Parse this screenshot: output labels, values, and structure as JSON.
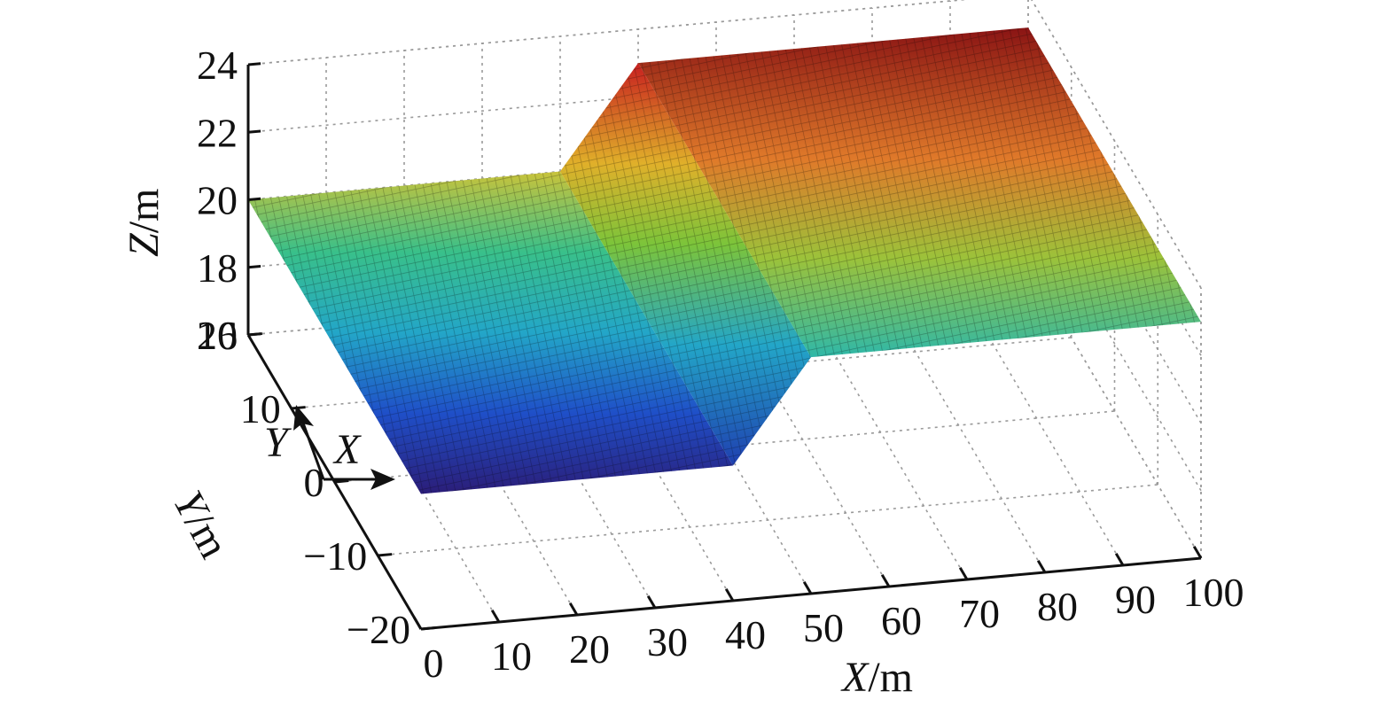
{
  "chart_data": {
    "type": "surface",
    "view": "3d",
    "title": "",
    "xlabel_var": "X",
    "xlabel_unit": "/m",
    "ylabel_var": "Y",
    "ylabel_unit": "/m",
    "zlabel_var": "Z",
    "zlabel_unit": "/m",
    "xlim": [
      0,
      100
    ],
    "ylim": [
      -20,
      20
    ],
    "zlim": [
      16,
      24
    ],
    "x_ticks": [
      "0",
      "10",
      "20",
      "30",
      "40",
      "50",
      "60",
      "70",
      "80",
      "90",
      "100"
    ],
    "y_ticks": [
      "−20",
      "−10",
      "0",
      "10",
      "20"
    ],
    "z_ticks": [
      "16",
      "18",
      "20",
      "22",
      "24"
    ],
    "grid": true,
    "colormap": [
      "#2b1d78",
      "#1f4fc8",
      "#23a6c8",
      "#39c08a",
      "#c9c33a",
      "#e07a2a",
      "#b81f1f",
      "#6a1010"
    ],
    "surface": {
      "description_x": [
        0,
        40,
        50,
        100
      ],
      "description_z": [
        20,
        20,
        23,
        23
      ],
      "y_range": [
        -20,
        20
      ],
      "segments": [
        {
          "x_from": 0,
          "x_to": 40,
          "z_from": 20,
          "z_to": 20
        },
        {
          "x_from": 40,
          "x_to": 50,
          "z_from": 20,
          "z_to": 23
        },
        {
          "x_from": 50,
          "x_to": 100,
          "z_from": 23,
          "z_to": 23
        }
      ]
    },
    "annotations": [
      {
        "label": "X",
        "direction": "x"
      },
      {
        "label": "Y",
        "direction": "y"
      }
    ]
  }
}
